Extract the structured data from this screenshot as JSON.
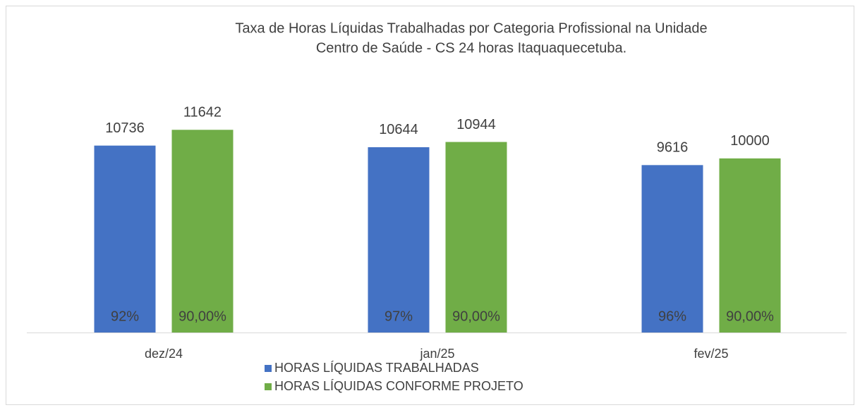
{
  "chart_data": {
    "type": "bar",
    "title": [
      "Taxa de Horas Líquidas Trabalhadas por Categoria Profissional na Unidade",
      "Centro de Saúde - CS 24 horas Itaquaquecetuba."
    ],
    "categories": [
      "dez/24",
      "jan/25",
      "fev/25"
    ],
    "series": [
      {
        "name": "HORAS LÍQUIDAS TRABALHADAS",
        "color": "#4472c4",
        "values": [
          10736,
          10644,
          9616
        ],
        "inner_labels": [
          "92%",
          "97%",
          "96%"
        ]
      },
      {
        "name": "HORAS LÍQUIDAS CONFORME PROJETO",
        "color": "#70ad47",
        "values": [
          11642,
          10944,
          10000
        ],
        "inner_labels": [
          "90,00%",
          "90,00%",
          "90,00%"
        ]
      }
    ],
    "ylim": [
      0,
      14000
    ],
    "legend": "bottom"
  }
}
